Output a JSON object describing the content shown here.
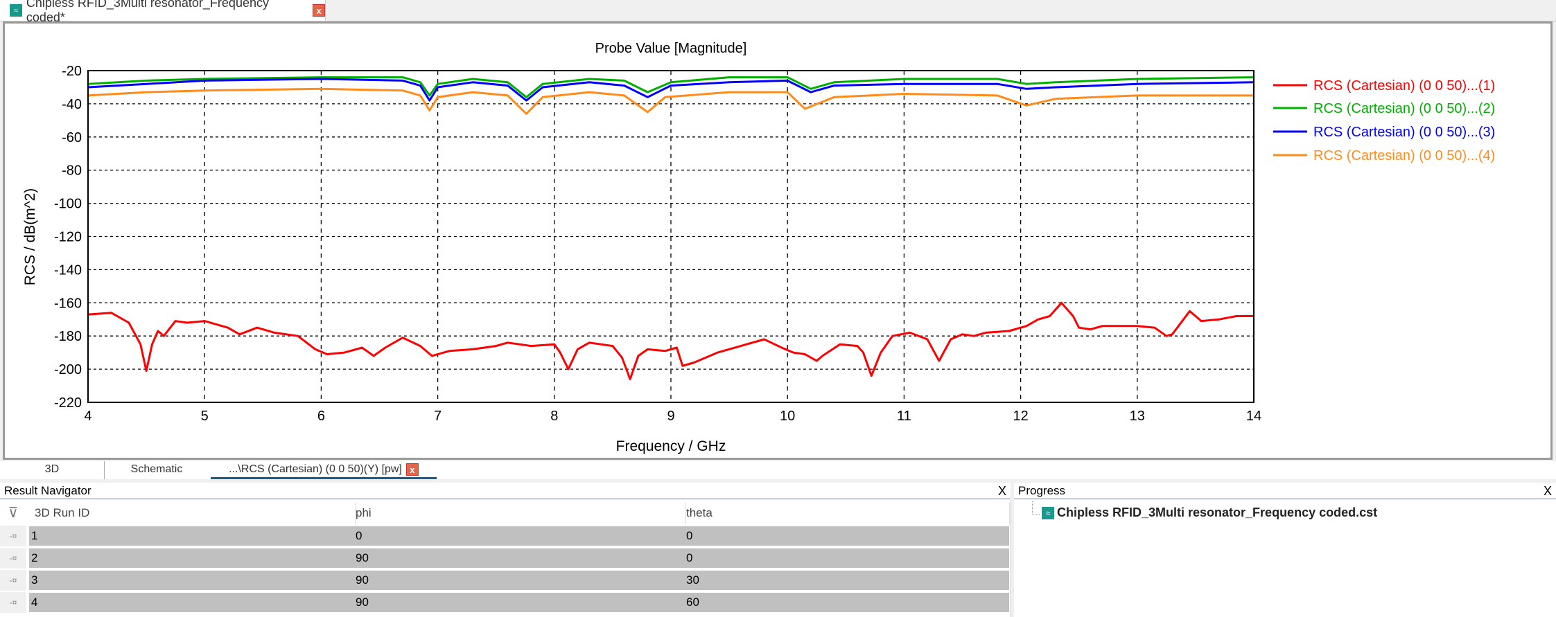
{
  "window": {
    "doc_tab_title": "Chipless RFID_3Multi resonator_Frequency coded*",
    "close_glyph": "x"
  },
  "bottom_tabs": [
    {
      "label": "3D"
    },
    {
      "label": "Schematic"
    },
    {
      "label": "...\\RCS (Cartesian) (0 0 50)(Y) [pw]",
      "active": true
    }
  ],
  "result_navigator": {
    "title": "Result Navigator",
    "close": "X",
    "columns": [
      "3D Run ID",
      "phi",
      "theta"
    ],
    "rows": [
      [
        "1",
        "0",
        "0"
      ],
      [
        "2",
        "90",
        "0"
      ],
      [
        "3",
        "90",
        "30"
      ],
      [
        "4",
        "90",
        "60"
      ]
    ]
  },
  "progress": {
    "title": "Progress",
    "close": "X",
    "item": "Chipless RFID_3Multi resonator_Frequency coded.cst"
  },
  "chart_data": {
    "type": "line",
    "title": "Probe Value [Magnitude]",
    "xlabel": "Frequency / GHz",
    "ylabel": "RCS / dB(m^2)",
    "xlim": [
      4,
      14
    ],
    "ylim": [
      -220,
      -20
    ],
    "xticks": [
      4,
      5,
      6,
      7,
      8,
      9,
      10,
      11,
      12,
      13,
      14
    ],
    "yticks": [
      -20,
      -40,
      -60,
      -80,
      -100,
      -120,
      -140,
      -160,
      -180,
      -200,
      -220
    ],
    "grid": true,
    "legend_position": "right",
    "series": [
      {
        "name": "RCS (Cartesian) (0 0 50)...(1)",
        "color": "#ff0000",
        "x": [
          4.0,
          4.2,
          4.35,
          4.45,
          4.5,
          4.55,
          4.6,
          4.65,
          4.75,
          4.85,
          5.0,
          5.2,
          5.3,
          5.45,
          5.6,
          5.8,
          5.95,
          6.05,
          6.2,
          6.35,
          6.45,
          6.55,
          6.7,
          6.85,
          6.95,
          7.1,
          7.3,
          7.5,
          7.6,
          7.8,
          8.0,
          8.05,
          8.12,
          8.2,
          8.3,
          8.5,
          8.58,
          8.65,
          8.72,
          8.8,
          8.95,
          9.05,
          9.1,
          9.2,
          9.4,
          9.6,
          9.8,
          9.95,
          10.05,
          10.15,
          10.25,
          10.3,
          10.45,
          10.6,
          10.65,
          10.72,
          10.8,
          10.9,
          11.05,
          11.2,
          11.3,
          11.4,
          11.5,
          11.6,
          11.7,
          11.9,
          12.05,
          12.15,
          12.25,
          12.35,
          12.45,
          12.5,
          12.6,
          12.7,
          13.0,
          13.15,
          13.25,
          13.3,
          13.45,
          13.55,
          13.7,
          13.85,
          14.0
        ],
        "y": [
          -167,
          -166,
          -172,
          -185,
          -201,
          -185,
          -177,
          -180,
          -171,
          -172,
          -171,
          -175,
          -179,
          -175,
          -178,
          -180,
          -188,
          -191,
          -190,
          -187,
          -192,
          -187,
          -181,
          -186,
          -192,
          -189,
          -188,
          -186,
          -184,
          -186,
          -185,
          -190,
          -200,
          -188,
          -184,
          -186,
          -193,
          -206,
          -192,
          -188,
          -189,
          -187,
          -198,
          -196,
          -190,
          -186,
          -182,
          -187,
          -190,
          -191,
          -195,
          -192,
          -185,
          -186,
          -190,
          -204,
          -190,
          -180,
          -178,
          -182,
          -195,
          -182,
          -179,
          -180,
          -178,
          -177,
          -174,
          -170,
          -168,
          -160,
          -168,
          -175,
          -176,
          -174,
          -174,
          -175,
          -180,
          -179,
          -165,
          -171,
          -170,
          -168,
          -168
        ]
      },
      {
        "name": "RCS (Cartesian) (0 0 50)...(2)",
        "color": "#00b000",
        "x": [
          4,
          4.5,
          5,
          6,
          6.7,
          6.85,
          6.93,
          7.0,
          7.3,
          7.6,
          7.76,
          7.9,
          8.3,
          8.6,
          8.8,
          9.0,
          9.5,
          10.0,
          10.2,
          10.4,
          11,
          11.8,
          12.05,
          12.3,
          13,
          14
        ],
        "y": [
          -28,
          -26,
          -25,
          -24,
          -24,
          -27,
          -35,
          -28,
          -25,
          -27,
          -36,
          -28,
          -25,
          -26,
          -33,
          -27,
          -24,
          -24,
          -31,
          -27,
          -25,
          -25,
          -28,
          -27,
          -25,
          -24
        ]
      },
      {
        "name": "RCS (Cartesian) (0 0 50)...(3)",
        "color": "#0000ff",
        "x": [
          4,
          4.5,
          5,
          6,
          6.7,
          6.85,
          6.93,
          7.0,
          7.3,
          7.6,
          7.76,
          7.9,
          8.3,
          8.6,
          8.8,
          9.0,
          9.5,
          10.0,
          10.2,
          10.4,
          11,
          11.8,
          12.05,
          12.3,
          13,
          14
        ],
        "y": [
          -30,
          -28,
          -26,
          -25,
          -26,
          -29,
          -38,
          -30,
          -27,
          -29,
          -38,
          -30,
          -27,
          -29,
          -36,
          -29,
          -27,
          -26,
          -33,
          -29,
          -28,
          -28,
          -31,
          -30,
          -28,
          -27
        ]
      },
      {
        "name": "RCS (Cartesian) (0 0 50)...(4)",
        "color": "#ff8c1a",
        "x": [
          4,
          4.5,
          5,
          6,
          6.7,
          6.85,
          6.93,
          7.0,
          7.3,
          7.6,
          7.76,
          7.9,
          8.3,
          8.6,
          8.8,
          8.95,
          9.5,
          10.0,
          10.15,
          10.4,
          11,
          11.8,
          12.05,
          12.3,
          13,
          14
        ],
        "y": [
          -35,
          -33,
          -32,
          -31,
          -32,
          -35,
          -44,
          -36,
          -33,
          -35,
          -46,
          -36,
          -33,
          -35,
          -45,
          -36,
          -33,
          -33,
          -43,
          -36,
          -34,
          -35,
          -41,
          -37,
          -35,
          -35
        ]
      }
    ]
  }
}
